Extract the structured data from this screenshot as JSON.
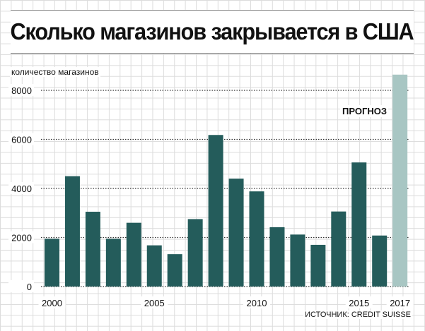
{
  "title": "Сколько магазинов закрывается в США",
  "ylabel": "количество магазинов",
  "source": "ИСТОЧНИК: CREDIT SUISSE",
  "forecast_label": "ПРОГНОЗ",
  "colors": {
    "bar": "#245c5b",
    "forecast_bar": "#a8c6c3",
    "grid_dots": "#333333"
  },
  "chart_data": {
    "type": "bar",
    "title": "Сколько магазинов закрывается в США",
    "ylabel": "количество магазинов",
    "xlabel": "",
    "categories": [
      "2000",
      "2001",
      "2002",
      "2003",
      "2004",
      "2005",
      "2006",
      "2007",
      "2008",
      "2009",
      "2010",
      "2011",
      "2012",
      "2013",
      "2014",
      "2015",
      "2016",
      "2017"
    ],
    "values": [
      1950,
      4500,
      3050,
      1950,
      2600,
      1680,
      1320,
      2750,
      6180,
      4400,
      3880,
      2420,
      2120,
      1700,
      3060,
      5060,
      2080,
      8640
    ],
    "forecast": [
      false,
      false,
      false,
      false,
      false,
      false,
      false,
      false,
      false,
      false,
      false,
      false,
      false,
      false,
      false,
      false,
      false,
      true
    ],
    "x_tick_labels": [
      "2000",
      "2005",
      "2010",
      "2015",
      "2017"
    ],
    "y_tick_labels": [
      "0",
      "2000",
      "4000",
      "6000",
      "8000"
    ],
    "ylim": [
      0,
      8640
    ],
    "grid": true
  }
}
